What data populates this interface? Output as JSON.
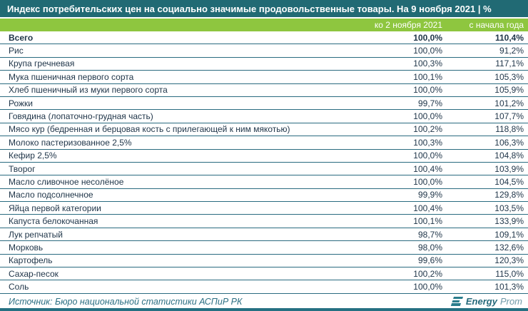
{
  "header": {
    "title": "Индекс потребительских цен на социально значимые продовольственные товары. На 9 ноября 2021 | %"
  },
  "columns": {
    "to_nov2": "ко 2 ноября 2021",
    "ytd": "с начала года"
  },
  "footer": {
    "source": "Источник: Бюро национальной статистики АСПиР РК",
    "logo_energy": "Energy",
    "logo_prom": "Prom"
  },
  "colors": {
    "title_bar": "#216a74",
    "header_band": "#8ec63f",
    "row_separator": "#2a6b80",
    "text": "#1e3448",
    "accent_teal": "#257082"
  },
  "chart_data": {
    "type": "table",
    "title": "Индекс потребительских цен на социально значимые продовольственные товары. На 9 ноября 2021 | %",
    "columns": [
      "",
      "ко 2 ноября 2021",
      "с начала года"
    ],
    "rows": [
      [
        "Всего",
        "100,0%",
        "110,4%"
      ],
      [
        "Рис",
        "100,0%",
        "91,2%"
      ],
      [
        "Крупа гречневая",
        "100,3%",
        "117,1%"
      ],
      [
        "Мука пшеничная первого сорта",
        "100,1%",
        "105,3%"
      ],
      [
        "Хлеб пшеничный из муки первого сорта",
        "100,0%",
        "105,9%"
      ],
      [
        "Рожки",
        "99,7%",
        "101,2%"
      ],
      [
        "Говядина (лопаточно-грудная часть)",
        "100,0%",
        "107,7%"
      ],
      [
        "Мясо кур (бедренная и берцовая кость с прилегающей к ним мякотью)",
        "100,2%",
        "118,8%"
      ],
      [
        "Молоко пастеризованное 2,5%",
        "100,3%",
        "106,3%"
      ],
      [
        "Кефир 2,5%",
        "100,0%",
        "104,8%"
      ],
      [
        "Творог",
        "100,4%",
        "103,9%"
      ],
      [
        "Масло сливочное несолёное",
        "100,0%",
        "104,5%"
      ],
      [
        "Масло подсолнечное",
        "99,9%",
        "129,8%"
      ],
      [
        "Яйца первой категории",
        "100,4%",
        "103,5%"
      ],
      [
        "Капуста белокочанная",
        "100,1%",
        "133,9%"
      ],
      [
        "Лук репчатый",
        "98,7%",
        "109,1%"
      ],
      [
        "Морковь",
        "98,0%",
        "132,6%"
      ],
      [
        "Картофель",
        "99,6%",
        "120,3%"
      ],
      [
        "Сахар-песок",
        "100,2%",
        "115,0%"
      ],
      [
        "Соль",
        "100,0%",
        "101,3%"
      ]
    ]
  }
}
